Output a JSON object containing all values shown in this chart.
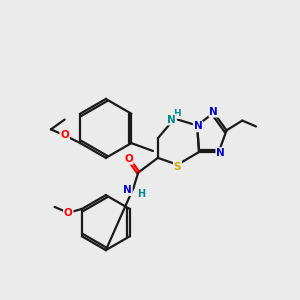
{
  "background_color": "#ebebeb",
  "bond_color": "#1a1a1a",
  "atom_colors": {
    "O": "#ff0000",
    "N": "#0000cc",
    "S": "#ccaa00",
    "NH": "#008888",
    "H": "#008888",
    "C": "#1a1a1a"
  },
  "figsize": [
    3.0,
    3.0
  ],
  "dpi": 100
}
